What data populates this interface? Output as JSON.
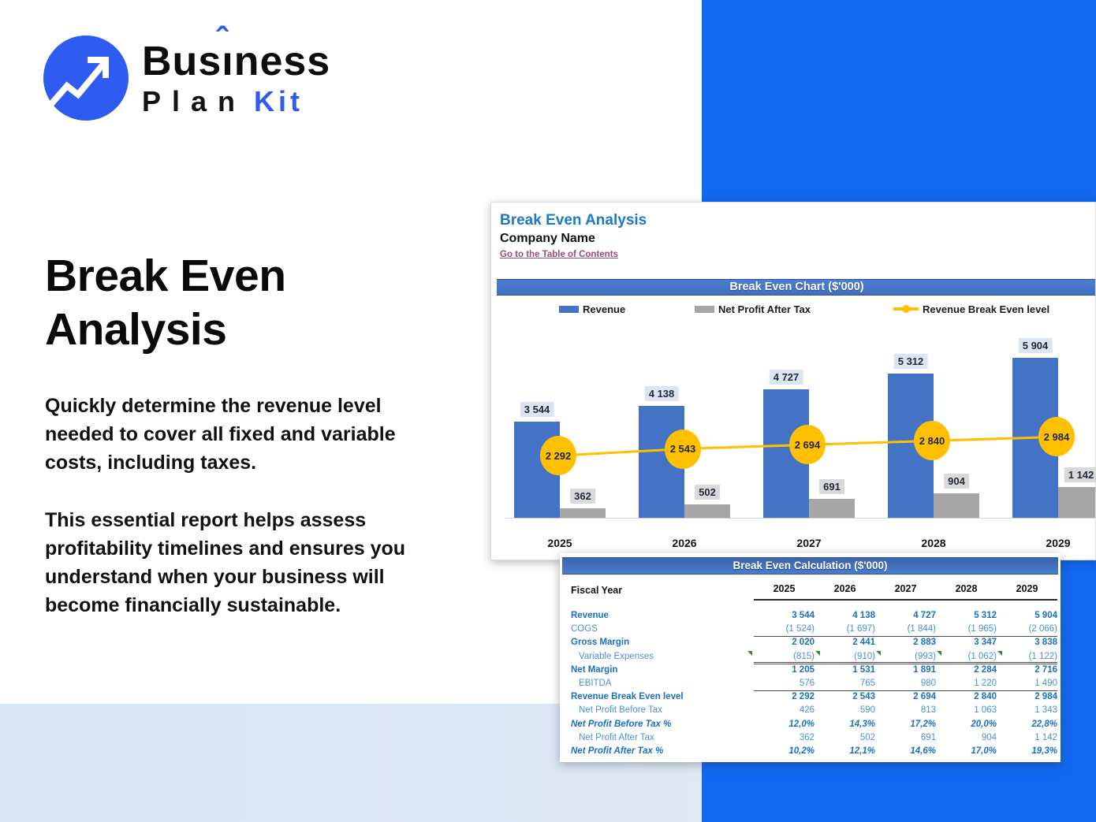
{
  "colors": {
    "brand_blue": "#2e5bf0",
    "panel_blue": "#1169f1",
    "bar_blue": "#4472c4",
    "bar_gray": "#a6a6a6",
    "line_orange": "#ffc000",
    "header_bar_blue": "#4472c4",
    "table_text_blue": "#2e79c7",
    "link_color": "#954f72",
    "band_light_blue": "#d9e6f8",
    "report_title_blue": "#1c79c8"
  },
  "brand": {
    "word1_pre": "Bus",
    "word1_i": "ı",
    "word1_hat": "ˆ",
    "word1_post": "ness",
    "word2": "Plan",
    "word3": "Kit"
  },
  "hero": {
    "title_line1": "Break Even",
    "title_line2": "Analysis",
    "paragraph1": "Quickly determine the revenue level needed to cover all fixed and variable costs, including taxes.",
    "paragraph2": "This essential report helps assess profitability timelines and ensures you understand when your business will become financially sustainable."
  },
  "report": {
    "title": "Break Even Analysis",
    "company": "Company Name",
    "toc_link": "Go to the Table of Contents"
  },
  "chart_data": {
    "type": "bar",
    "title": "Break Even Chart ($'000)",
    "categories": [
      "2025",
      "2026",
      "2027",
      "2028",
      "2029"
    ],
    "series": [
      {
        "name": "Revenue",
        "type": "bar",
        "color": "#4472c4",
        "values": [
          3544,
          4138,
          4727,
          5312,
          5904
        ],
        "labels": [
          "3 544",
          "4 138",
          "4 727",
          "5 312",
          "5 904"
        ]
      },
      {
        "name": "Net Profit After Tax",
        "type": "bar",
        "color": "#a6a6a6",
        "values": [
          362,
          502,
          691,
          904,
          1142
        ],
        "labels": [
          "362",
          "502",
          "691",
          "904",
          "1 142"
        ]
      },
      {
        "name": "Revenue Break Even level",
        "type": "line",
        "color": "#ffc000",
        "values": [
          2292,
          2543,
          2694,
          2840,
          2984
        ],
        "labels": [
          "2 292",
          "2 543",
          "2 694",
          "2 840",
          "2 984"
        ]
      }
    ],
    "xlabel": "",
    "ylabel": "",
    "ylim": [
      0,
      6200
    ],
    "grid": false,
    "legend_position": "top"
  },
  "table": {
    "header": "Break Even Calculation ($'000)",
    "fiscal_year_label": "Fiscal Year",
    "years": [
      "2025",
      "2026",
      "2027",
      "2028",
      "2029"
    ],
    "rows": [
      {
        "label": "Revenue",
        "style": "bold",
        "values": [
          "3 544",
          "4 138",
          "4 727",
          "5 312",
          "5 904"
        ]
      },
      {
        "label": "COGS",
        "style": "regular",
        "values": [
          "(1 524)",
          "(1 697)",
          "(1 844)",
          "(1 965)",
          "(2 066)"
        ],
        "border": "single"
      },
      {
        "label": "Gross Margin",
        "style": "bold",
        "values": [
          "2 020",
          "2 441",
          "2 883",
          "3 347",
          "3 838"
        ]
      },
      {
        "label": "Variable Expenses",
        "style": "regular indent",
        "values": [
          "(815)",
          "(910)",
          "(993)",
          "(1 062)",
          "(1 122)"
        ],
        "border": "double",
        "flags": [
          true,
          true,
          true,
          true,
          false
        ],
        "lead_flag": true
      },
      {
        "label": "Net Margin",
        "style": "bold",
        "values": [
          "1 205",
          "1 531",
          "1 891",
          "2 284",
          "2 716"
        ]
      },
      {
        "label": "EBITDA",
        "style": "regular indent",
        "values": [
          "576",
          "765",
          "980",
          "1 220",
          "1 490"
        ],
        "border": "single"
      },
      {
        "label": "Revenue Break Even level",
        "style": "bold",
        "values": [
          "2 292",
          "2 543",
          "2 694",
          "2 840",
          "2 984"
        ]
      },
      {
        "label": "Net Profit Before Tax",
        "style": "regular indent",
        "values": [
          "426",
          "590",
          "813",
          "1 063",
          "1 343"
        ]
      },
      {
        "label": "Net Profit Before Tax %",
        "style": "bold italic",
        "values": [
          "12,0%",
          "14,3%",
          "17,2%",
          "20,0%",
          "22,8%"
        ]
      },
      {
        "label": "Net Profit After Tax",
        "style": "regular indent",
        "values": [
          "362",
          "502",
          "691",
          "904",
          "1 142"
        ]
      },
      {
        "label": "Net Profit After Tax %",
        "style": "bold italic",
        "values": [
          "10,2%",
          "12,1%",
          "14,6%",
          "17,0%",
          "19,3%"
        ]
      }
    ]
  }
}
